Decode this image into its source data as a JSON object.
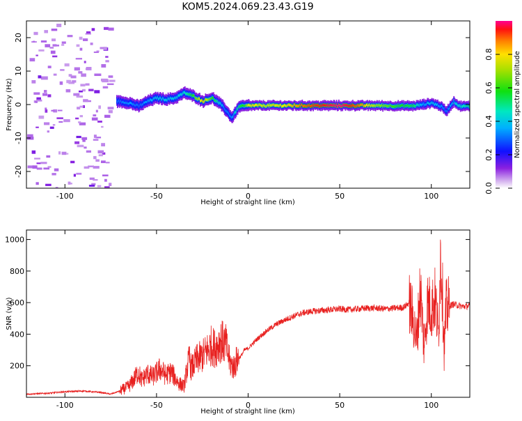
{
  "figure": {
    "title": "KOM5.2024.069.23.43.G19"
  },
  "chart_data": [
    {
      "type": "heatmap",
      "xlabel": "Height of straight line (km)",
      "ylabel": "Frequency (Hz)",
      "xlim": [
        -121,
        121
      ],
      "ylim": [
        -25,
        25
      ],
      "xticks": [
        -100,
        -50,
        0,
        50,
        100
      ],
      "yticks": [
        -20,
        -10,
        0,
        10,
        20
      ],
      "colorbar": {
        "label": "Normalized spectral amplitude",
        "ticks": [
          "0.0",
          "0.2",
          "0.4",
          "0.6",
          "0.8"
        ],
        "range": [
          0,
          1
        ]
      },
      "ridge_track": {
        "x": [
          -72,
          -65,
          -60,
          -55,
          -50,
          -45,
          -40,
          -35,
          -30,
          -25,
          -20,
          -15,
          -12,
          -9,
          -7,
          -5,
          -2,
          0,
          10,
          20,
          30,
          40,
          50,
          60,
          70,
          80,
          90,
          95,
          100,
          105,
          108,
          112,
          115,
          121
        ],
        "freq": [
          1,
          0.5,
          -0.5,
          1,
          2,
          1.5,
          2,
          3.5,
          2.5,
          1,
          2,
          0,
          -2,
          -4,
          -2,
          -0.5,
          -0.5,
          -0.3,
          -0.3,
          -0.3,
          -0.3,
          -0.3,
          -0.3,
          -0.3,
          -0.3,
          -0.4,
          -0.4,
          0,
          0.5,
          -0.5,
          -2,
          1,
          -0.5,
          -0.5
        ],
        "amplitude": [
          0.3,
          0.35,
          0.3,
          0.35,
          0.4,
          0.4,
          0.4,
          0.45,
          0.6,
          0.85,
          0.6,
          0.4,
          0.3,
          0.35,
          0.45,
          0.55,
          0.6,
          0.8,
          0.75,
          0.8,
          0.9,
          0.95,
          1.0,
          0.9,
          0.7,
          0.6,
          0.55,
          0.35,
          0.4,
          0.35,
          0.3,
          0.4,
          0.45,
          0.5
        ]
      },
      "noise_region_x": [
        -121,
        -75
      ]
    },
    {
      "type": "line",
      "xlabel": "Height of straight line (km)",
      "ylabel": "SNR (v/v)",
      "xlim": [
        -121,
        121
      ],
      "ylim": [
        0,
        1060
      ],
      "xticks": [
        -100,
        -50,
        0,
        50,
        100
      ],
      "yticks": [
        200,
        400,
        600,
        800,
        1000
      ],
      "series": [
        {
          "color": "#e8201f",
          "x": [
            -121,
            -110,
            -100,
            -90,
            -80,
            -75,
            -70,
            -65,
            -62,
            -60,
            -58,
            -55,
            -52,
            -48,
            -45,
            -42,
            -38,
            -35,
            -33,
            -32,
            -31,
            -30,
            -28,
            -25,
            -22,
            -20,
            -18,
            -15,
            -12,
            -10,
            -8,
            -6,
            -4,
            -2,
            0,
            5,
            10,
            15,
            20,
            25,
            30,
            35,
            40,
            45,
            50,
            55,
            60,
            65,
            70,
            75,
            80,
            85,
            88,
            90,
            92,
            94,
            96,
            98,
            100,
            102,
            104,
            105,
            106,
            107,
            108,
            110,
            112,
            115,
            118,
            121
          ],
          "y": [
            20,
            25,
            35,
            40,
            30,
            20,
            40,
            70,
            120,
            160,
            110,
            150,
            130,
            180,
            140,
            160,
            90,
            70,
            200,
            250,
            180,
            200,
            240,
            260,
            300,
            330,
            310,
            360,
            330,
            220,
            190,
            240,
            260,
            300,
            310,
            370,
            420,
            460,
            490,
            515,
            535,
            545,
            550,
            555,
            560,
            555,
            560,
            565,
            565,
            560,
            565,
            570,
            600,
            500,
            350,
            700,
            320,
            600,
            560,
            620,
            400,
            900,
            700,
            300,
            550,
            580,
            590,
            580,
            575,
            580
          ]
        }
      ]
    }
  ]
}
